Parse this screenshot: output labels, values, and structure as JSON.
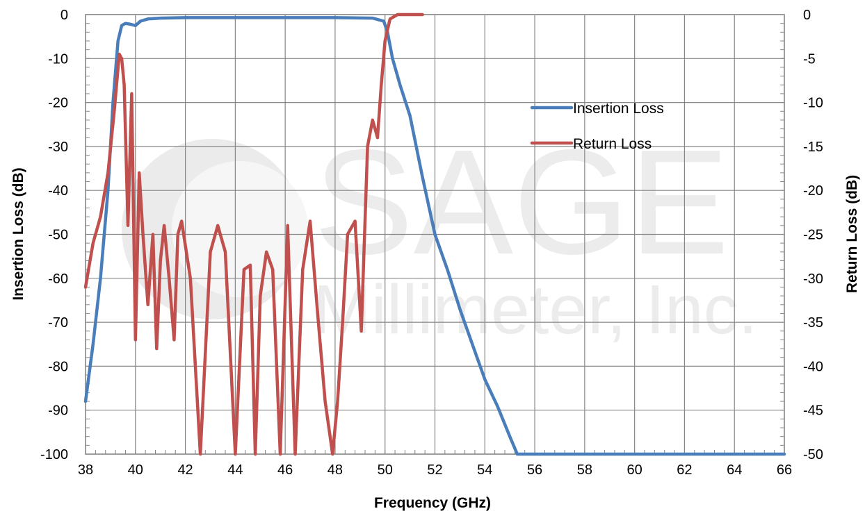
{
  "watermark": {
    "line1": "SAGE",
    "line2": "Millimeter, Inc."
  },
  "chart_data": {
    "type": "line",
    "title": "",
    "xlabel": "Frequency (GHz)",
    "ylabel": "Insertion Loss (dB)",
    "y2label": "Return Loss (dB)",
    "xlim": [
      38,
      66
    ],
    "ylim": [
      -100,
      0
    ],
    "y2lim": [
      -50,
      0
    ],
    "x_ticks": [
      "38",
      "40",
      "42",
      "44",
      "46",
      "48",
      "50",
      "52",
      "54",
      "56",
      "58",
      "60",
      "62",
      "64",
      "66"
    ],
    "y_ticks": [
      "0",
      "-10",
      "-20",
      "-30",
      "-40",
      "-50",
      "-60",
      "-70",
      "-80",
      "-90",
      "-100"
    ],
    "y2_ticks": [
      "0",
      "-5",
      "-10",
      "-15",
      "-20",
      "-25",
      "-30",
      "-35",
      "-40",
      "-45",
      "-50"
    ],
    "grid": true,
    "legend_position": "upper-right, inside plot",
    "series": [
      {
        "name": "Insertion Loss",
        "axis": "left",
        "color": "#4a7ebb",
        "x": [
          38.0,
          38.3,
          38.6,
          38.9,
          39.1,
          39.3,
          39.45,
          39.6,
          39.8,
          40.0,
          40.2,
          40.5,
          41.0,
          42.0,
          44.0,
          46.0,
          48.0,
          49.5,
          49.95,
          50.1,
          50.3,
          50.6,
          51.0,
          51.5,
          52.0,
          52.5,
          53.0,
          53.5,
          54.0,
          54.5,
          55.0,
          55.3,
          55.5,
          58.0,
          62.0,
          66.0
        ],
        "y": [
          -88,
          -75,
          -60,
          -40,
          -20,
          -6,
          -2.5,
          -2,
          -2.2,
          -2.5,
          -1.5,
          -1.0,
          -0.8,
          -0.7,
          -0.7,
          -0.7,
          -0.7,
          -0.8,
          -1.5,
          -4,
          -10,
          -16,
          -23,
          -37,
          -50,
          -58,
          -67,
          -75,
          -83,
          -89,
          -96,
          -100,
          -100,
          -100,
          -100,
          -100
        ]
      },
      {
        "name": "Return Loss",
        "axis": "right",
        "color": "#c0504d",
        "x": [
          38.0,
          38.3,
          38.6,
          38.9,
          39.15,
          39.35,
          39.45,
          39.55,
          39.7,
          39.85,
          40.0,
          40.15,
          40.3,
          40.5,
          40.7,
          40.85,
          41.0,
          41.15,
          41.35,
          41.55,
          41.7,
          41.85,
          42.2,
          42.6,
          43.0,
          43.3,
          43.6,
          44.0,
          44.35,
          44.6,
          44.8,
          45.0,
          45.25,
          45.5,
          45.8,
          46.1,
          46.4,
          46.7,
          47.0,
          47.3,
          47.6,
          47.9,
          48.1,
          48.3,
          48.5,
          48.8,
          49.05,
          49.3,
          49.5,
          49.7,
          49.85,
          50.0,
          50.2,
          50.5,
          51.0,
          51.5
        ],
        "y": [
          -31,
          -26,
          -23,
          -18,
          -11,
          -4.5,
          -5,
          -8,
          -24,
          -9,
          -37,
          -18,
          -25,
          -33,
          -25,
          -38,
          -28,
          -24,
          -30,
          -37,
          -25,
          -23.5,
          -30,
          -50,
          -27,
          -24,
          -27,
          -50,
          -29,
          -28.5,
          -50,
          -32,
          -27,
          -29,
          -50,
          -24,
          -50,
          -29,
          -23.5,
          -34,
          -44,
          -50,
          -44,
          -35,
          -25,
          -23.5,
          -36,
          -15,
          -12,
          -14,
          -8,
          -3,
          -0.5,
          0,
          0,
          0
        ]
      }
    ]
  }
}
